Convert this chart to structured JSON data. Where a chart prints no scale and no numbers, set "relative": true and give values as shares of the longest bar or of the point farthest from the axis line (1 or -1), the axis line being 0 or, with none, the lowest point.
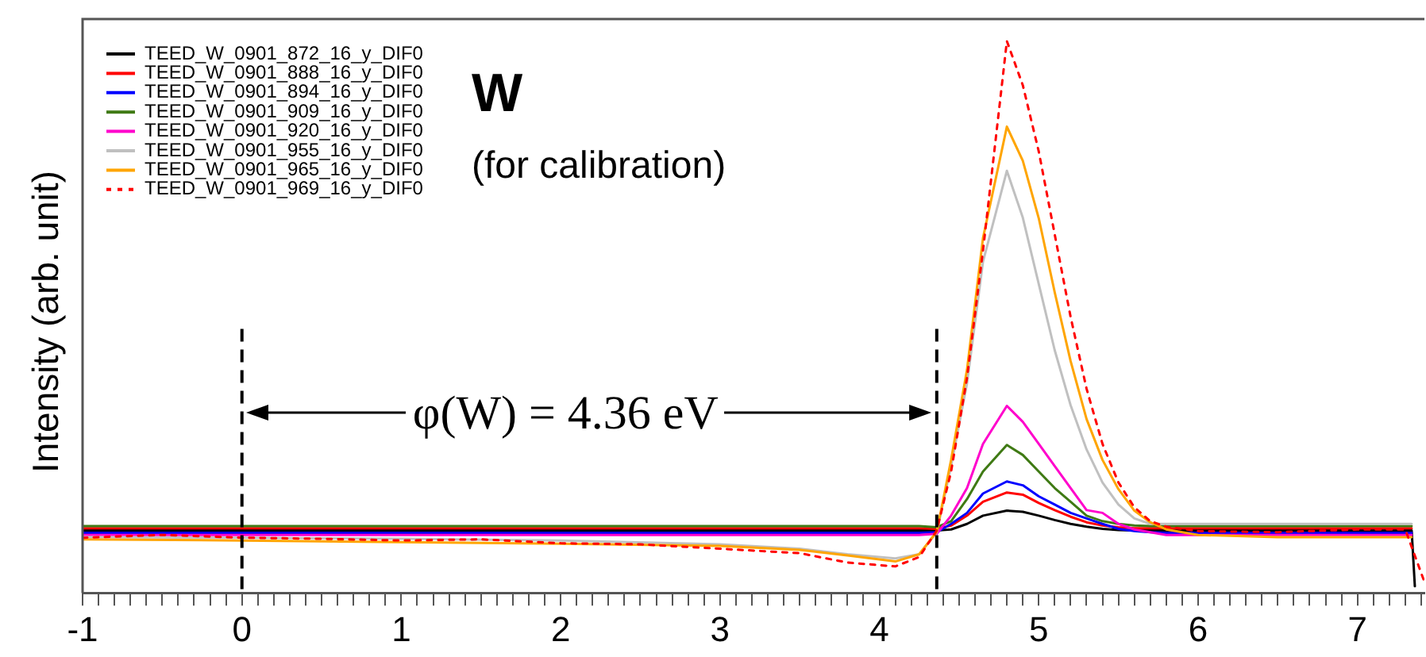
{
  "chart_data": {
    "type": "line",
    "relative": true,
    "ylabel": "Intensity (arb. unit)",
    "annotations": [
      "W",
      "(for calibration)",
      "φ(W) = 4.36 eV"
    ],
    "ref_lines": [
      {
        "axis": "x",
        "value": 0,
        "color": "#000000",
        "line_style": "dashed"
      },
      {
        "axis": "x",
        "value": 4.36,
        "color": "#000000",
        "line_style": "dashed"
      }
    ],
    "xlim": [
      -1,
      7.42
    ],
    "xticks": [
      -1,
      {
        "value": -0.9,
        "label": null
      },
      {
        "value": -0.8,
        "label": null
      },
      {
        "value": -0.7,
        "label": null
      },
      {
        "value": -0.6,
        "label": null
      },
      {
        "value": -0.5,
        "label": null
      },
      {
        "value": -0.4,
        "label": null
      },
      {
        "value": -0.3,
        "label": null
      },
      {
        "value": -0.2,
        "label": null
      },
      {
        "value": -0.1,
        "label": null
      },
      0,
      {
        "value": 0.1,
        "label": null
      },
      {
        "value": 0.2,
        "label": null
      },
      {
        "value": 0.3,
        "label": null
      },
      {
        "value": 0.4,
        "label": null
      },
      {
        "value": 0.5,
        "label": null
      },
      {
        "value": 0.6,
        "label": null
      },
      {
        "value": 0.7,
        "label": null
      },
      {
        "value": 0.8,
        "label": null
      },
      {
        "value": 0.9,
        "label": null
      },
      1,
      {
        "value": 1.1,
        "label": null
      },
      {
        "value": 1.2,
        "label": null
      },
      {
        "value": 1.3,
        "label": null
      },
      {
        "value": 1.4,
        "label": null
      },
      {
        "value": 1.5,
        "label": null
      },
      {
        "value": 1.6,
        "label": null
      },
      {
        "value": 1.7,
        "label": null
      },
      {
        "value": 1.8,
        "label": null
      },
      {
        "value": 1.9,
        "label": null
      },
      2,
      {
        "value": 2.1,
        "label": null
      },
      {
        "value": 2.2,
        "label": null
      },
      {
        "value": 2.3,
        "label": null
      },
      {
        "value": 2.4,
        "label": null
      },
      {
        "value": 2.5,
        "label": null
      },
      {
        "value": 2.6,
        "label": null
      },
      {
        "value": 2.7,
        "label": null
      },
      {
        "value": 2.8,
        "label": null
      },
      {
        "value": 2.9,
        "label": null
      },
      3,
      {
        "value": 3.1,
        "label": null
      },
      {
        "value": 3.2,
        "label": null
      },
      {
        "value": 3.3,
        "label": null
      },
      {
        "value": 3.4,
        "label": null
      },
      {
        "value": 3.5,
        "label": null
      },
      {
        "value": 3.6,
        "label": null
      },
      {
        "value": 3.7,
        "label": null
      },
      {
        "value": 3.8,
        "label": null
      },
      {
        "value": 3.9,
        "label": null
      },
      4,
      {
        "value": 4.1,
        "label": null
      },
      {
        "value": 4.2,
        "label": null
      },
      {
        "value": 4.3,
        "label": null
      },
      {
        "value": 4.4,
        "label": null
      },
      {
        "value": 4.5,
        "label": null
      },
      {
        "value": 4.6,
        "label": null
      },
      {
        "value": 4.7,
        "label": null
      },
      {
        "value": 4.8,
        "label": null
      },
      {
        "value": 4.9,
        "label": null
      },
      5,
      {
        "value": 5.1,
        "label": null
      },
      {
        "value": 5.2,
        "label": null
      },
      {
        "value": 5.3,
        "label": null
      },
      {
        "value": 5.4,
        "label": null
      },
      {
        "value": 5.5,
        "label": null
      },
      {
        "value": 5.6,
        "label": null
      },
      {
        "value": 5.7,
        "label": null
      },
      {
        "value": 5.8,
        "label": null
      },
      {
        "value": 5.9,
        "label": null
      },
      6,
      {
        "value": 6.1,
        "label": null
      },
      {
        "value": 6.2,
        "label": null
      },
      {
        "value": 6.3,
        "label": null
      },
      {
        "value": 6.4,
        "label": null
      },
      {
        "value": 6.5,
        "label": null
      },
      {
        "value": 6.6,
        "label": null
      },
      {
        "value": 6.7,
        "label": null
      },
      {
        "value": 6.8,
        "label": null
      },
      {
        "value": 6.9,
        "label": null
      },
      7,
      {
        "value": 7.1,
        "label": null
      },
      {
        "value": 7.2,
        "label": null
      },
      {
        "value": 7.3,
        "label": null
      },
      {
        "value": 7.4,
        "label": null
      }
    ],
    "grid": false,
    "legend": "top left",
    "marker": "none",
    "line_style": "solid",
    "x": [
      -1,
      0,
      1,
      2,
      3,
      3.5,
      3.8,
      4.1,
      4.25,
      4.36,
      4.45,
      4.55,
      4.65,
      4.8,
      4.9,
      5.0,
      5.1,
      5.2,
      5.3,
      5.4,
      5.5,
      5.6,
      5.7,
      5.8,
      6.0,
      6.5,
      7.0,
      7.34,
      7.36
    ],
    "series": [
      {
        "name": "TEED_W_0901_872_16_y_DIF0",
        "color": "#000000",
        "values": [
          0.113,
          0.113,
          0.113,
          0.113,
          0.113,
          0.113,
          0.113,
          0.113,
          0.113,
          0.113,
          0.115,
          0.125,
          0.14,
          0.149,
          0.147,
          0.14,
          0.132,
          0.125,
          0.12,
          0.116,
          0.114,
          0.113,
          0.113,
          0.113,
          0.113,
          0.113,
          0.113,
          0.113,
          0.012
        ]
      },
      {
        "name": "TEED_W_0901_888_16_y_DIF0",
        "color": "#ff0000",
        "values": [
          0.117,
          0.117,
          0.117,
          0.117,
          0.117,
          0.117,
          0.117,
          0.117,
          0.117,
          0.116,
          0.122,
          0.14,
          0.165,
          0.182,
          0.178,
          0.163,
          0.15,
          0.138,
          0.128,
          0.122,
          0.119,
          0.117,
          0.117,
          0.117,
          0.117,
          0.117,
          0.117,
          0.117,
          null
        ]
      },
      {
        "name": "TEED_W_0901_894_16_y_DIF0",
        "color": "#0000ff",
        "values": [
          0.109,
          0.109,
          0.109,
          0.109,
          0.109,
          0.109,
          0.109,
          0.109,
          0.109,
          0.11,
          0.125,
          0.145,
          0.18,
          0.202,
          0.195,
          0.175,
          0.16,
          0.145,
          0.135,
          0.125,
          0.116,
          0.112,
          0.11,
          0.109,
          0.109,
          0.109,
          0.109,
          0.109,
          null
        ]
      },
      {
        "name": "TEED_W_0901_909_16_y_DIF0",
        "color": "#3f7a14",
        "values": [
          0.121,
          0.121,
          0.121,
          0.121,
          0.121,
          0.121,
          0.121,
          0.121,
          0.121,
          0.119,
          0.13,
          0.17,
          0.22,
          0.268,
          0.25,
          0.22,
          0.19,
          0.165,
          0.14,
          0.13,
          0.125,
          0.122,
          0.121,
          0.121,
          0.121,
          0.121,
          0.121,
          0.121,
          null
        ]
      },
      {
        "name": "TEED_W_0901_920_16_y_DIF0",
        "color": "#ff00cc",
        "values": [
          0.105,
          0.105,
          0.105,
          0.105,
          0.105,
          0.105,
          0.105,
          0.105,
          0.105,
          0.107,
          0.14,
          0.19,
          0.27,
          0.339,
          0.31,
          0.27,
          0.23,
          0.19,
          0.15,
          0.145,
          0.125,
          0.115,
          0.11,
          0.105,
          0.105,
          0.105,
          0.105,
          0.105,
          null
        ]
      },
      {
        "name": "TEED_W_0901_955_16_y_DIF0",
        "color": "#c0c0c0",
        "values": [
          0.101,
          0.1,
          0.098,
          0.095,
          0.088,
          0.08,
          0.07,
          0.0625,
          0.07,
          0.11,
          0.23,
          0.38,
          0.6,
          0.765,
          0.68,
          0.56,
          0.44,
          0.34,
          0.26,
          0.2,
          0.16,
          0.135,
          0.125,
          0.125,
          0.125,
          0.125,
          0.125,
          0.125,
          null
        ]
      },
      {
        "name": "TEED_W_0901_965_16_y_DIF0",
        "color": "#ffa500",
        "values": [
          0.097,
          0.095,
          0.092,
          0.089,
          0.085,
          0.078,
          0.068,
          0.057,
          0.07,
          0.111,
          0.241,
          0.405,
          0.643,
          0.845,
          0.783,
          0.679,
          0.545,
          0.42,
          0.315,
          0.241,
          0.188,
          0.149,
          0.128,
          0.115,
          0.105,
          0.101,
          0.101,
          0.101,
          null
        ]
      },
      {
        "name": "TEED_W_0901_969_16_y_DIF0",
        "color": "#ff0000",
        "line_style": "dotted",
        "x": [
          -1,
          -0.5,
          0,
          0.5,
          1,
          1.5,
          2,
          2.5,
          3,
          3.5,
          3.8,
          4.1,
          4.25,
          4.36,
          4.45,
          4.55,
          4.65,
          4.8,
          4.9,
          5.0,
          5.1,
          5.2,
          5.3,
          5.4,
          5.5,
          5.6,
          5.7,
          5.8,
          6.0,
          6.5,
          7.0,
          7.3,
          7.42
        ],
        "values": [
          0.1,
          0.105,
          0.1,
          0.098,
          0.095,
          0.097,
          0.09,
          0.088,
          0.08,
          0.072,
          0.055,
          0.048,
          0.065,
          0.113,
          0.22,
          0.39,
          0.62,
          1,
          0.92,
          0.8,
          0.65,
          0.5,
          0.37,
          0.27,
          0.2,
          0.155,
          0.13,
          0.12,
          0.112,
          0.11,
          0.115,
          0.115,
          0.02
        ]
      }
    ]
  }
}
